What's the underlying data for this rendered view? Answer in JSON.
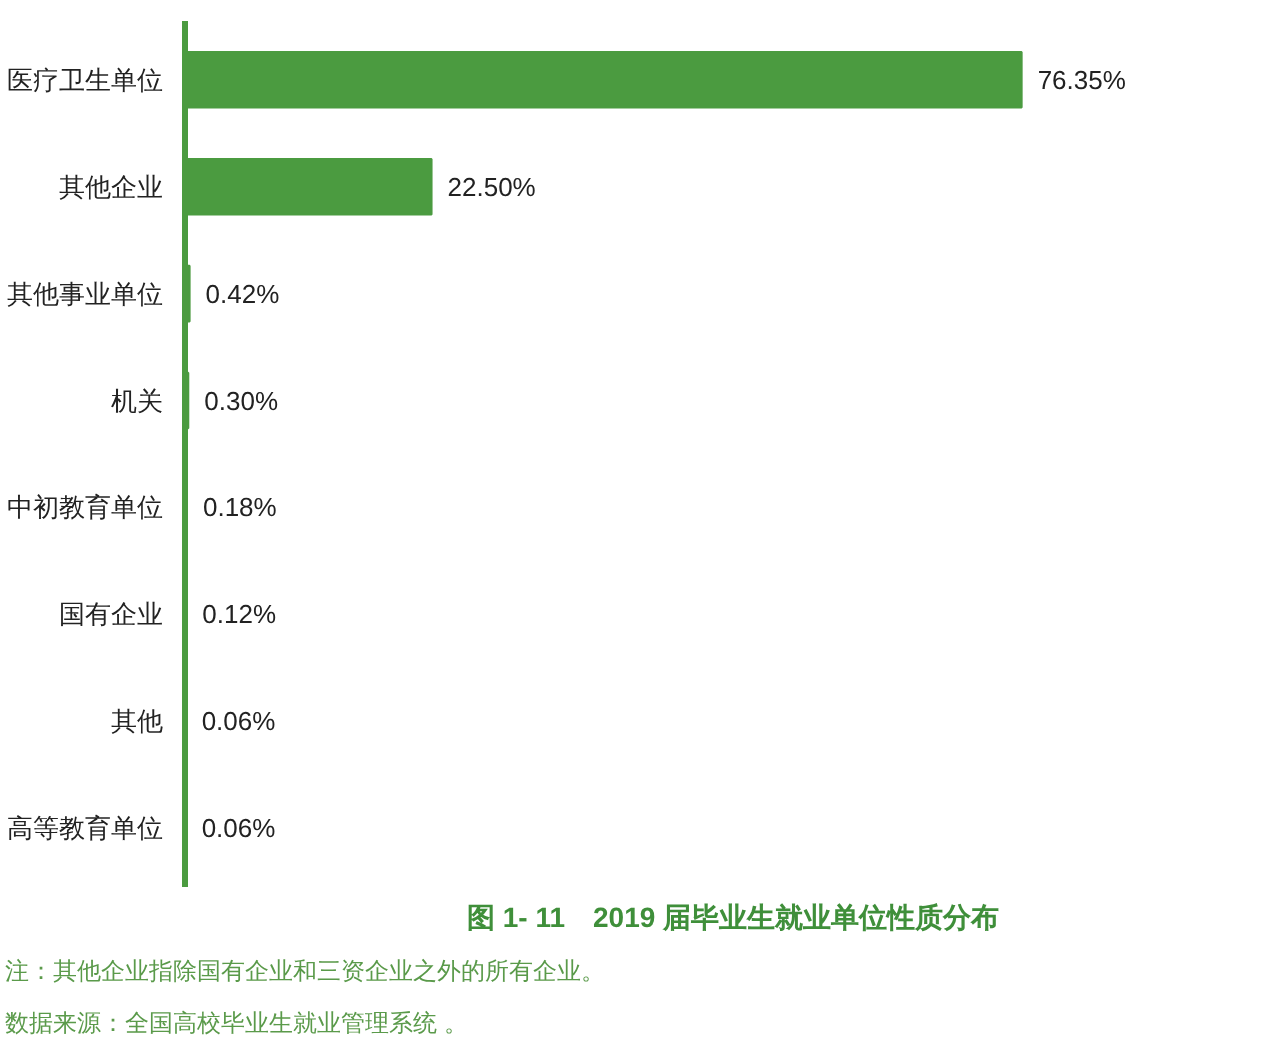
{
  "chart_data": {
    "type": "bar",
    "orientation": "horizontal",
    "title": "图 1- 11　2019 届毕业生就业单位性质分布",
    "categories": [
      "医疗卫生单位",
      "其他企业",
      "其他事业单位",
      "机关",
      "中初教育单位",
      "国有企业",
      "其他",
      "高等教育单位"
    ],
    "values": [
      76.35,
      22.5,
      0.42,
      0.3,
      0.18,
      0.12,
      0.06,
      0.06
    ],
    "value_labels": [
      "76.35%",
      "22.50%",
      "0.42%",
      "0.30%",
      "0.18%",
      "0.12%",
      "0.06%",
      "0.06%"
    ],
    "color": "#4b9b40",
    "grid": false,
    "annotations": [
      "注：其他企业指除国有企业和三资企业之外的所有企业。",
      "数据来源：全国高校毕业生就业管理系统 。"
    ]
  }
}
